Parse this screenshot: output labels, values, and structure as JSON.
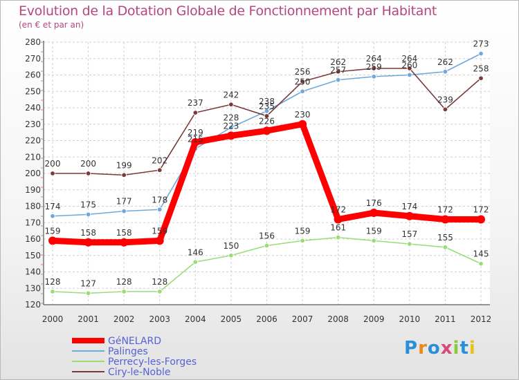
{
  "chart_data": {
    "type": "line",
    "title": "Evolution de la Dotation Globale de Fonctionnement par Habitant",
    "subtitle": "(en € et par an)",
    "x": [
      2000,
      2001,
      2002,
      2003,
      2004,
      2005,
      2006,
      2007,
      2008,
      2009,
      2010,
      2011,
      2012
    ],
    "ylim": [
      120,
      280
    ],
    "yticks": [
      120,
      130,
      140,
      150,
      160,
      170,
      180,
      190,
      200,
      210,
      220,
      230,
      240,
      250,
      260,
      270,
      280
    ],
    "grid": true,
    "legend_position": "bottom-left",
    "series": [
      {
        "name": "GéNELARD",
        "color": "#ff0000",
        "values": [
          159,
          158,
          158,
          159,
          219,
          223,
          226,
          230,
          172,
          176,
          174,
          172,
          172
        ],
        "labels": [
          "159",
          "158",
          "158",
          "159",
          "219",
          "223",
          "226",
          "230",
          "172",
          "176",
          "174",
          "172",
          "172"
        ]
      },
      {
        "name": "Palinges",
        "color": "#6fa8dc",
        "values": [
          174,
          175,
          177,
          178,
          215,
          228,
          238,
          250,
          257,
          259,
          260,
          262,
          273
        ],
        "labels": [
          "174",
          "175",
          "177",
          "178",
          "215",
          "228",
          "238",
          "250",
          "257",
          "259",
          "260",
          "262",
          "273"
        ]
      },
      {
        "name": "Perrecy-les-Forges",
        "color": "#99dd77",
        "values": [
          128,
          127,
          128,
          128,
          146,
          150,
          156,
          159,
          161,
          159,
          157,
          155,
          145
        ],
        "labels": [
          "128",
          "127",
          "128",
          "128",
          "146",
          "150",
          "156",
          "159",
          "161",
          "159",
          "157",
          "155",
          "145"
        ]
      },
      {
        "name": "Ciry-le-Noble",
        "color": "#7a3a3a",
        "values": [
          200,
          200,
          199,
          202,
          237,
          242,
          235,
          256,
          262,
          264,
          264,
          239,
          258
        ],
        "labels": [
          "200",
          "200",
          "199",
          "202",
          "237",
          "242",
          "235",
          "256",
          "262",
          "264",
          "264",
          "239",
          "258"
        ]
      }
    ]
  },
  "logo": {
    "text": "Proxiti"
  }
}
